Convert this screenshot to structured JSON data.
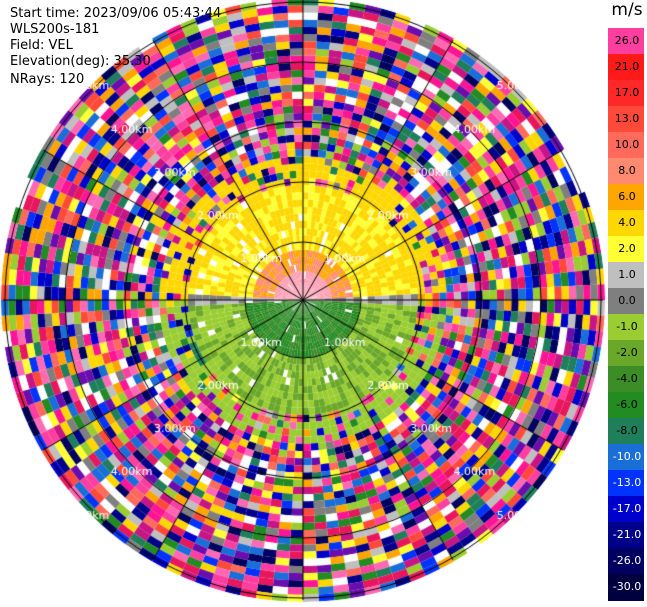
{
  "header": {
    "start_time": "Start time: 2023/09/06 05:43:44",
    "instrument": "WLS200s-181",
    "field": "Field: VEL",
    "elevation": "Elevation(deg): 35.30",
    "nrays": "NRays: 120"
  },
  "colorbar": {
    "unit": "m/s",
    "levels": [
      "26.0",
      "21.0",
      "17.0",
      "13.0",
      "10.0",
      "8.0",
      "6.0",
      "4.0",
      "2.0",
      "1.0",
      "0.0",
      "-1.0",
      "-2.0",
      "-4.0",
      "-6.0",
      "-8.0",
      "-10.0",
      "-13.0",
      "-17.0",
      "-21.0",
      "-26.0",
      "-30.0"
    ],
    "colors": [
      "#ff3fa0",
      "#ff1a1a",
      "#ff2828",
      "#ff4a3a",
      "#ff6a5a",
      "#ff8a70",
      "#ffa500",
      "#ffd700",
      "#ffff33",
      "#bfbfbf",
      "#7f7f7f",
      "#9acd32",
      "#6aa82a",
      "#3c8c28",
      "#228b22",
      "#1f7f5a",
      "#1a6ed8",
      "#0033ff",
      "#0000cc",
      "#00008b",
      "#000060",
      "#000040"
    ]
  },
  "rings": {
    "labels": [
      "1.00km",
      "2.00km",
      "3.00km",
      "4.00km",
      "5.00km"
    ]
  }
}
